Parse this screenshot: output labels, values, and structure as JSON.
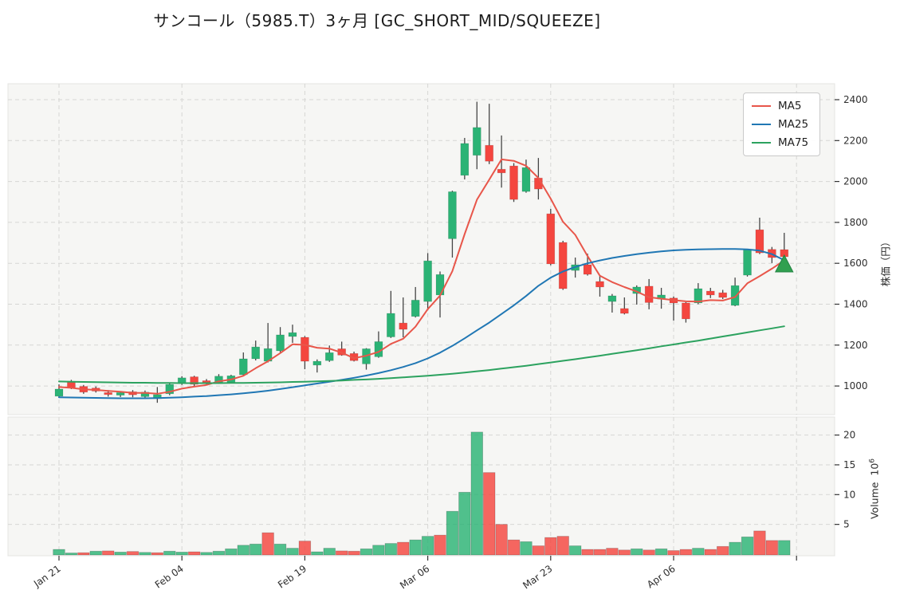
{
  "title": "サンコール（5985.T）3ヶ月 [GC_SHORT_MID/SQUEEZE]",
  "legend": [
    {
      "label": "MA5",
      "color": "#e8564a"
    },
    {
      "label": "MA25",
      "color": "#2077b4"
    },
    {
      "label": "MA75",
      "color": "#2ca25f"
    }
  ],
  "axes": {
    "price_label": "株価（円）",
    "volume_label": "Volume",
    "volume_base": "10",
    "volume_exp": "6"
  },
  "colors": {
    "up": "#2bb375",
    "down": "#f4463f",
    "wick": "#454545",
    "ma5": "#e8564a",
    "ma25": "#2077b4",
    "ma75": "#2ca25f",
    "marker": "#31a050",
    "marker_edge": "#228442",
    "panel": "#f6f6f4",
    "grid": "#d6d6d4",
    "tick": "#333333",
    "tick_text": "#2e2e2e"
  },
  "chart_data": {
    "type": "candlestick+volume",
    "title": "サンコール（5985.T）3ヶ月 [GC_SHORT_MID/SQUEEZE]",
    "ylabel": "株価（円）",
    "ylabel2": "Volume 10^6",
    "grid": true,
    "legend_position": "upper right",
    "price_ticks": [
      1000,
      1200,
      1400,
      1600,
      1800,
      2000,
      2200,
      2400
    ],
    "volume_ticks": [
      5,
      10,
      15,
      20
    ],
    "price_range": [
      860,
      2478
    ],
    "volume_max": 23,
    "x_ticks": [
      {
        "i": 0,
        "label": "Jan 21"
      },
      {
        "i": 10,
        "label": "Feb 04"
      },
      {
        "i": 20,
        "label": "Feb 19"
      },
      {
        "i": 30,
        "label": "Mar 06"
      },
      {
        "i": 40,
        "label": "Mar 23"
      },
      {
        "i": 50,
        "label": "Apr 06"
      },
      {
        "i": 60,
        "label": ""
      }
    ],
    "candles_format": [
      "open",
      "high",
      "low",
      "close",
      "volume_millions"
    ],
    "candles": [
      [
        950,
        1008,
        942,
        985,
        0.8
      ],
      [
        1023,
        1030,
        985,
        990,
        0.2
      ],
      [
        998,
        1005,
        962,
        970,
        0.25
      ],
      [
        990,
        998,
        968,
        975,
        0.5
      ],
      [
        968,
        980,
        948,
        958,
        0.55
      ],
      [
        955,
        975,
        946,
        968,
        0.35
      ],
      [
        972,
        980,
        945,
        957,
        0.45
      ],
      [
        948,
        978,
        938,
        970,
        0.3
      ],
      [
        938,
        995,
        918,
        958,
        0.25
      ],
      [
        962,
        1018,
        955,
        1008,
        0.5
      ],
      [
        1012,
        1048,
        1005,
        1040,
        0.35
      ],
      [
        1045,
        1050,
        1000,
        1008,
        0.4
      ],
      [
        1026,
        1034,
        1004,
        1012,
        0.3
      ],
      [
        1016,
        1058,
        1010,
        1048,
        0.5
      ],
      [
        1018,
        1055,
        1012,
        1050,
        0.9
      ],
      [
        1055,
        1164,
        1050,
        1133,
        1.5
      ],
      [
        1133,
        1222,
        1125,
        1191,
        1.7
      ],
      [
        1121,
        1308,
        1115,
        1183,
        3.6
      ],
      [
        1172,
        1288,
        1165,
        1250,
        1.7
      ],
      [
        1242,
        1300,
        1211,
        1261,
        1.0
      ],
      [
        1238,
        1244,
        1082,
        1121,
        2.2
      ],
      [
        1102,
        1130,
        1066,
        1121,
        0.4
      ],
      [
        1124,
        1198,
        1118,
        1163,
        1.0
      ],
      [
        1182,
        1217,
        1148,
        1151,
        0.55
      ],
      [
        1159,
        1168,
        1120,
        1124,
        0.5
      ],
      [
        1108,
        1185,
        1080,
        1182,
        0.9
      ],
      [
        1143,
        1267,
        1138,
        1217,
        1.5
      ],
      [
        1240,
        1465,
        1235,
        1355,
        1.8
      ],
      [
        1308,
        1433,
        1238,
        1277,
        2.0
      ],
      [
        1340,
        1484,
        1335,
        1420,
        2.4
      ],
      [
        1413,
        1650,
        1370,
        1612,
        3.0
      ],
      [
        1445,
        1560,
        1335,
        1545,
        3.2
      ],
      [
        1720,
        1955,
        1628,
        1950,
        7.2
      ],
      [
        2030,
        2213,
        2010,
        2186,
        10.4
      ],
      [
        2128,
        2390,
        2060,
        2264,
        20.5
      ],
      [
        2177,
        2380,
        2085,
        2099,
        13.7
      ],
      [
        2060,
        2225,
        1970,
        2042,
        5.0
      ],
      [
        2076,
        2090,
        1900,
        1912,
        2.4
      ],
      [
        1951,
        2107,
        1945,
        2068,
        2.1
      ],
      [
        2017,
        2115,
        1912,
        1963,
        1.4
      ],
      [
        1842,
        1866,
        1590,
        1597,
        2.8
      ],
      [
        1702,
        1710,
        1470,
        1476,
        3.0
      ],
      [
        1565,
        1628,
        1530,
        1593,
        1.4
      ],
      [
        1593,
        1647,
        1540,
        1546,
        0.8
      ],
      [
        1511,
        1542,
        1437,
        1484,
        0.8
      ],
      [
        1413,
        1450,
        1359,
        1441,
        1.0
      ],
      [
        1379,
        1433,
        1350,
        1355,
        0.7
      ],
      [
        1452,
        1492,
        1398,
        1484,
        0.9
      ],
      [
        1488,
        1523,
        1375,
        1408,
        0.7
      ],
      [
        1425,
        1480,
        1378,
        1445,
        0.9
      ],
      [
        1430,
        1438,
        1320,
        1406,
        0.6
      ],
      [
        1406,
        1410,
        1310,
        1328,
        0.8
      ],
      [
        1406,
        1503,
        1400,
        1476,
        1.0
      ],
      [
        1464,
        1480,
        1430,
        1445,
        0.8
      ],
      [
        1456,
        1470,
        1425,
        1433,
        1.3
      ],
      [
        1394,
        1530,
        1390,
        1491,
        2.0
      ],
      [
        1542,
        1670,
        1535,
        1667,
        2.9
      ],
      [
        1764,
        1823,
        1645,
        1651,
        3.9
      ],
      [
        1668,
        1680,
        1601,
        1628,
        2.3
      ],
      [
        1667,
        1749,
        1608,
        1632,
        2.3
      ]
    ],
    "series": [
      {
        "name": "MA5",
        "values": [
          995,
          991,
          984,
          981,
          976,
          972,
          966,
          966,
          962,
          972,
          987,
          997,
          1005,
          1023,
          1032,
          1050,
          1087,
          1121,
          1161,
          1204,
          1201,
          1187,
          1183,
          1163,
          1136,
          1148,
          1167,
          1206,
          1231,
          1290,
          1376,
          1442,
          1561,
          1743,
          1911,
          2009,
          2108,
          2101,
          2077,
          2017,
          1916,
          1803,
          1739,
          1635,
          1539,
          1508,
          1484,
          1462,
          1434,
          1427,
          1420,
          1414,
          1413,
          1420,
          1418,
          1435,
          1502,
          1537,
          1574,
          1614
        ]
      },
      {
        "name": "MA25",
        "values": [
          945,
          944,
          943,
          942,
          941,
          940,
          940,
          940,
          941,
          943,
          945,
          948,
          951,
          955,
          959,
          964,
          970,
          977,
          985,
          994,
          1003,
          1012,
          1021,
          1030,
          1040,
          1051,
          1063,
          1077,
          1093,
          1112,
          1135,
          1163,
          1196,
          1233,
          1272,
          1310,
          1352,
          1394,
          1440,
          1490,
          1530,
          1560,
          1582,
          1600,
          1614,
          1626,
          1636,
          1645,
          1652,
          1658,
          1663,
          1666,
          1668,
          1669,
          1670,
          1670,
          1668,
          1662,
          1645,
          1615
        ]
      },
      {
        "name": "MA75",
        "values": [
          1022,
          1021,
          1020,
          1019,
          1018,
          1017,
          1016,
          1016,
          1015,
          1015,
          1014,
          1014,
          1014,
          1014,
          1015,
          1015,
          1016,
          1017,
          1018,
          1020,
          1021,
          1023,
          1025,
          1027,
          1030,
          1032,
          1035,
          1038,
          1042,
          1046,
          1050,
          1055,
          1060,
          1066,
          1072,
          1078,
          1085,
          1092,
          1099,
          1107,
          1115,
          1123,
          1131,
          1140,
          1148,
          1157,
          1166,
          1175,
          1184,
          1194,
          1203,
          1213,
          1222,
          1232,
          1242,
          1252,
          1262,
          1272,
          1282,
          1292
        ]
      }
    ],
    "signal_marker": {
      "index": 59,
      "price": 1597,
      "shape": "triangle-up"
    }
  }
}
